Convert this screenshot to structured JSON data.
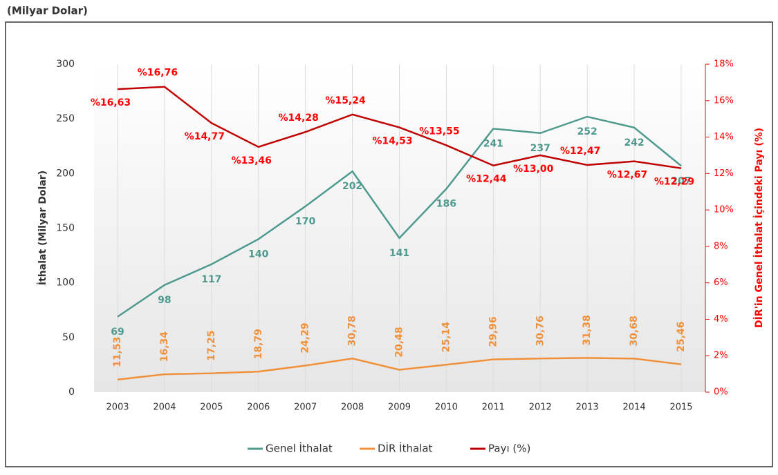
{
  "chart_data": {
    "type": "line",
    "title": "(Milyar Dolar)",
    "y_label": "İthalat (Milyar Dolar)",
    "y2_label": "DİR'in Genel İthalat İçindeki Payı (%)",
    "categories": [
      "2003",
      "2004",
      "2005",
      "2006",
      "2007",
      "2008",
      "2009",
      "2010",
      "2011",
      "2012",
      "2013",
      "2014",
      "2015"
    ],
    "series": [
      {
        "name": "Genel İthalat",
        "color": "#4e9a8f",
        "values": [
          69,
          98,
          117,
          140,
          170,
          202,
          141,
          186,
          241,
          237,
          252,
          242,
          207
        ]
      },
      {
        "name": "DİR İthalat",
        "color": "#f0913a",
        "values": [
          11.53,
          16.34,
          17.25,
          18.79,
          24.29,
          30.78,
          20.48,
          25.14,
          29.96,
          30.76,
          31.38,
          30.68,
          25.46
        ],
        "value_labels": [
          "11,53",
          "16,34",
          "17,25",
          "18,79",
          "24,29",
          "30,78",
          "20,48",
          "25,14",
          "29,96",
          "30,76",
          "31,38",
          "30,68",
          "25,46"
        ]
      },
      {
        "name": "Payı (%)",
        "color": "#c00000",
        "axis": "y2",
        "values": [
          16.63,
          16.76,
          14.77,
          13.46,
          14.28,
          15.24,
          14.53,
          13.55,
          12.44,
          13.0,
          12.47,
          12.67,
          12.29
        ],
        "value_labels": [
          "%16,63",
          "%16,76",
          "%14,77",
          "%13,46",
          "%14,28",
          "%15,24",
          "%14,53",
          "%13,55",
          "%12,44",
          "%13,00",
          "%12,47",
          "%12,67",
          "%12,29"
        ]
      }
    ],
    "ylim": [
      0,
      300
    ],
    "yticks": [
      0,
      50,
      100,
      150,
      200,
      250,
      300
    ],
    "y2lim": [
      0,
      18
    ],
    "y2ticks": [
      {
        "value": 0,
        "label": "0%"
      },
      {
        "value": 2,
        "label": "2%"
      },
      {
        "value": 4,
        "label": "4%"
      },
      {
        "value": 6,
        "label": "6%"
      },
      {
        "value": 8,
        "label": "8%"
      },
      {
        "value": 10,
        "label": "10%"
      },
      {
        "value": 12,
        "label": "12%"
      },
      {
        "value": 14,
        "label": "14%"
      },
      {
        "value": 16,
        "label": "16%"
      },
      {
        "value": 18,
        "label": "18%"
      }
    ],
    "legend": "bottom",
    "grid": true
  }
}
